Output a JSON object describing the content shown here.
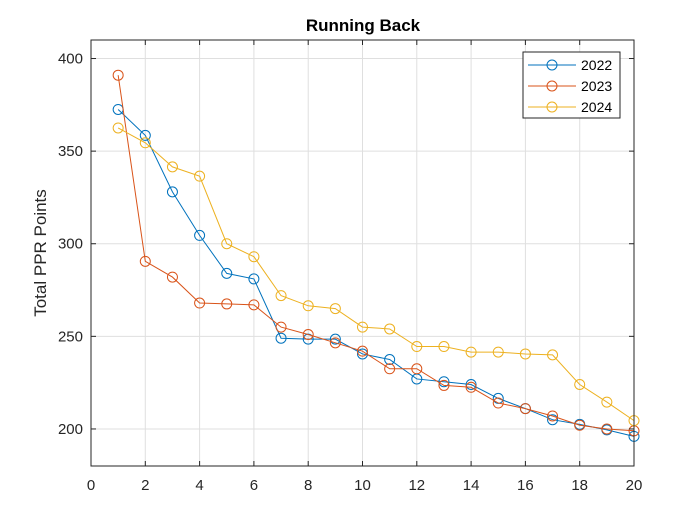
{
  "chart_data": {
    "type": "line",
    "title": "Running Back",
    "xlabel": "",
    "ylabel": "Total PPR Points",
    "xlim": [
      0,
      20
    ],
    "ylim": [
      180,
      410
    ],
    "xticks": [
      0,
      2,
      4,
      6,
      8,
      10,
      12,
      14,
      16,
      18,
      20
    ],
    "yticks": [
      200,
      250,
      300,
      350,
      400
    ],
    "grid": true,
    "legend_position": "top-right",
    "x": [
      1,
      2,
      3,
      4,
      5,
      6,
      7,
      8,
      9,
      10,
      11,
      12,
      13,
      14,
      15,
      16,
      17,
      18,
      19,
      20
    ],
    "series": [
      {
        "name": "2022",
        "color": "#0072BD",
        "marker": "circle",
        "values": [
          372.5,
          358.5,
          328,
          304.5,
          284,
          281,
          249,
          248.5,
          248.5,
          240.5,
          237.5,
          227,
          225.5,
          224,
          216.5,
          211,
          205,
          202.5,
          199.5,
          196
        ]
      },
      {
        "name": "2023",
        "color": "#D95319",
        "marker": "circle",
        "values": [
          391,
          290.5,
          282,
          268,
          267.5,
          267,
          255,
          251,
          246.5,
          242,
          232.5,
          232.5,
          223.5,
          222.5,
          214,
          211,
          207,
          202,
          200,
          199
        ]
      },
      {
        "name": "2024",
        "color": "#EDB120",
        "marker": "circle",
        "values": [
          362.5,
          354.5,
          341.5,
          336.5,
          300,
          293,
          272,
          266.5,
          265,
          255,
          254,
          244.5,
          244.5,
          241.5,
          241.5,
          240.5,
          240,
          224,
          214.5,
          204.5
        ]
      }
    ]
  }
}
